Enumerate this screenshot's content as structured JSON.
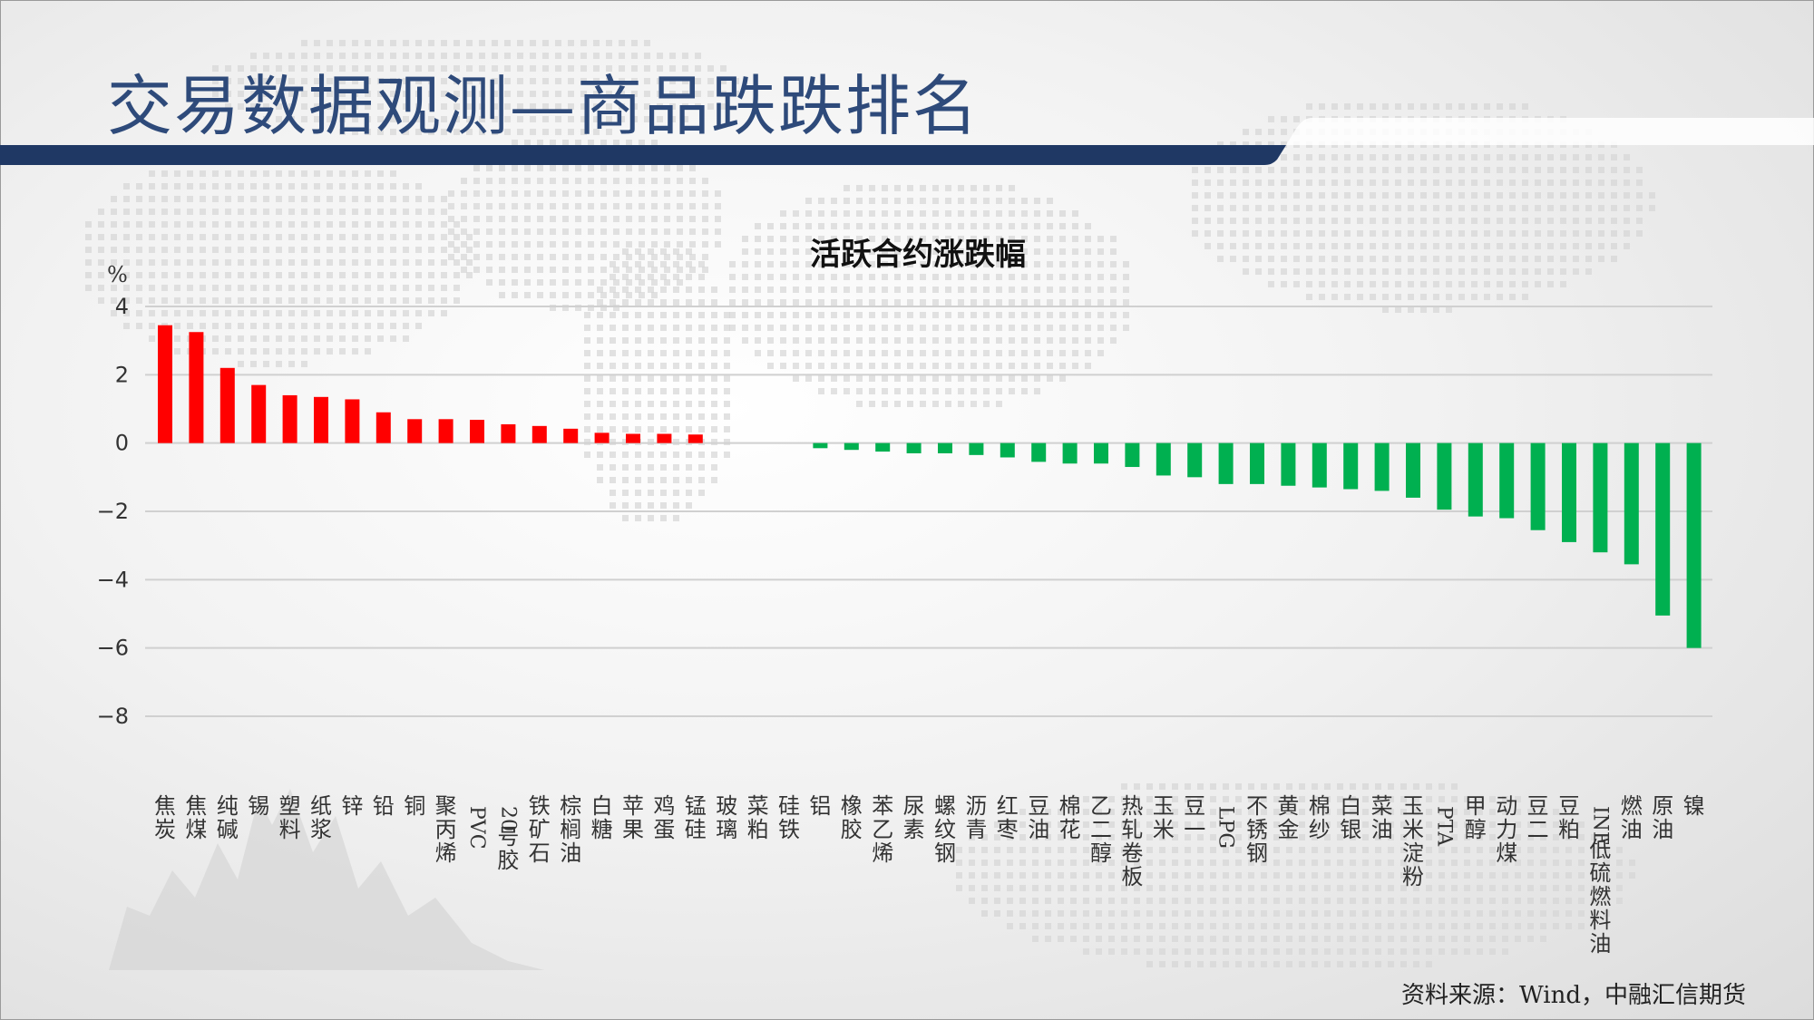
{
  "page": {
    "title": "交易数据观测—商品跌跌排名",
    "source": "资料来源：Wind，中融汇信期货"
  },
  "colors": {
    "positive": "#ff0000",
    "negative": "#00b050",
    "title_text": "#2e4a7a",
    "header_bar": "#1f3864"
  },
  "chart_data": {
    "type": "bar",
    "title": "活跃合约涨跌幅",
    "ylabel": "%",
    "ylim": [
      -8,
      4
    ],
    "yticks": [
      4,
      2,
      0,
      -2,
      -4,
      -6,
      -8
    ],
    "grid": true,
    "categories": [
      "焦炭",
      "焦煤",
      "纯碱",
      "锡",
      "塑料",
      "纸浆",
      "锌",
      "铅",
      "铜",
      "聚丙烯",
      "PVC",
      "20号胶",
      "铁矿石",
      "棕榈油",
      "白糖",
      "苹果",
      "鸡蛋",
      "锰硅",
      "玻璃",
      "菜粕",
      "硅铁",
      "铝",
      "橡胶",
      "苯乙烯",
      "尿素",
      "螺纹钢",
      "沥青",
      "红枣",
      "豆油",
      "棉花",
      "乙二醇",
      "热轧卷板",
      "玉米",
      "豆一",
      "LPG",
      "不锈钢",
      "黄金",
      "棉纱",
      "白银",
      "菜油",
      "玉米淀粉",
      "PTA",
      "甲醇",
      "动力煤",
      "豆二",
      "豆粕",
      "INE低硫燃料油",
      "燃油",
      "原油",
      "镍"
    ],
    "values": [
      3.45,
      3.25,
      2.2,
      1.7,
      1.4,
      1.35,
      1.28,
      0.9,
      0.7,
      0.7,
      0.68,
      0.55,
      0.5,
      0.42,
      0.3,
      0.27,
      0.27,
      0.25,
      0,
      0,
      0,
      -0.15,
      -0.2,
      -0.25,
      -0.3,
      -0.3,
      -0.35,
      -0.42,
      -0.55,
      -0.6,
      -0.6,
      -0.7,
      -0.95,
      -1.0,
      -1.2,
      -1.2,
      -1.25,
      -1.3,
      -1.35,
      -1.4,
      -1.6,
      -1.95,
      -2.15,
      -2.2,
      -2.55,
      -2.9,
      -3.2,
      -3.55,
      -5.05,
      -6.0
    ]
  }
}
